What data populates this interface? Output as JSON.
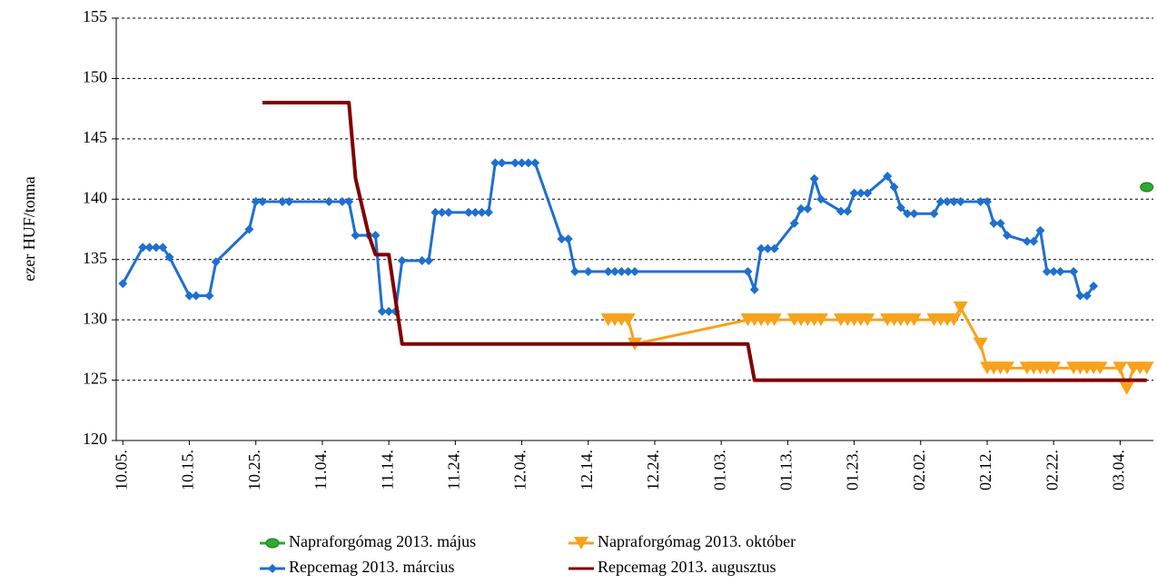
{
  "chart_data": {
    "type": "line",
    "y_label": "ezer HUF/tonna",
    "xlim": [
      -1,
      155
    ],
    "xticks": [
      {
        "value": 0,
        "label": "10.05."
      },
      {
        "value": 10,
        "label": "10.15."
      },
      {
        "value": 20,
        "label": "10.25."
      },
      {
        "value": 30,
        "label": "11.04."
      },
      {
        "value": 40,
        "label": "11.14."
      },
      {
        "value": 50,
        "label": "11.24."
      },
      {
        "value": 60,
        "label": "12.04."
      },
      {
        "value": 70,
        "label": "12.14."
      },
      {
        "value": 80,
        "label": "12.24."
      },
      {
        "value": 90,
        "label": "01.03."
      },
      {
        "value": 100,
        "label": "01.13."
      },
      {
        "value": 110,
        "label": "01.23."
      },
      {
        "value": 120,
        "label": "02.02."
      },
      {
        "value": 130,
        "label": "02.12."
      },
      {
        "value": 140,
        "label": "02.22."
      },
      {
        "value": 150,
        "label": "03.04."
      }
    ],
    "ylim": [
      120,
      155
    ],
    "yticks": [
      120,
      125,
      130,
      135,
      140,
      145,
      150,
      155
    ],
    "grid": true,
    "legend": "bottom",
    "series": [
      {
        "name": "Napraforgómag 2013. május",
        "color": "#2eaa2e",
        "marker": "circle",
        "x": [
          154
        ],
        "values": [
          141
        ]
      },
      {
        "name": "Napraforgómag 2013. október",
        "color": "#f7a21b",
        "marker": "triangle-down",
        "x": [
          73,
          74,
          75,
          76,
          77,
          94,
          95,
          96,
          97,
          98,
          101,
          102,
          103,
          104,
          105,
          108,
          109,
          110,
          111,
          112,
          115,
          116,
          117,
          118,
          119,
          122,
          123,
          124,
          125,
          126,
          129,
          130,
          131,
          132,
          133,
          136,
          137,
          138,
          139,
          140,
          143,
          144,
          145,
          146,
          147,
          150,
          151,
          152,
          153,
          154
        ],
        "values": [
          130,
          130,
          130,
          130,
          128,
          130,
          130,
          130,
          130,
          130,
          130,
          130,
          130,
          130,
          130,
          130,
          130,
          130,
          130,
          130,
          130,
          130,
          130,
          130,
          130,
          130,
          130,
          130,
          130,
          131,
          128,
          126,
          126,
          126,
          126,
          126,
          126,
          126,
          126,
          126,
          126,
          126,
          126,
          126,
          126,
          126,
          124.3,
          126,
          126,
          126
        ]
      },
      {
        "name": "Repcemag 2013. március",
        "color": "#1f6fcf",
        "marker": "diamond",
        "x": [
          0,
          3,
          4,
          5,
          6,
          7,
          10,
          11,
          13,
          14,
          19,
          20,
          21,
          24,
          25,
          31,
          33,
          34,
          35,
          37,
          38,
          39,
          40,
          41,
          42,
          45,
          46,
          47,
          48,
          49,
          52,
          53,
          54,
          55,
          56,
          57,
          59,
          60,
          61,
          62,
          66,
          67,
          68,
          70,
          73,
          74,
          75,
          76,
          77,
          94,
          95,
          96,
          97,
          98,
          101,
          102,
          103,
          104,
          105,
          108,
          109,
          110,
          111,
          112,
          115,
          116,
          117,
          118,
          119,
          122,
          123,
          124,
          125,
          126,
          129,
          130,
          131,
          132,
          133,
          136,
          137,
          138,
          139,
          140,
          141,
          143,
          144,
          145,
          146
        ],
        "values": [
          133,
          136,
          136,
          136,
          136,
          135.2,
          132,
          132,
          132,
          134.8,
          137.5,
          139.8,
          139.8,
          139.8,
          139.8,
          139.8,
          139.8,
          139.8,
          137,
          137,
          137,
          130.7,
          130.7,
          130.7,
          134.9,
          134.9,
          134.9,
          138.9,
          138.9,
          138.9,
          138.9,
          138.9,
          138.9,
          138.9,
          143,
          143,
          143,
          143,
          143,
          143,
          136.7,
          136.7,
          134,
          134,
          134,
          134,
          134,
          134,
          134,
          134,
          132.5,
          135.9,
          135.9,
          135.9,
          138,
          139.2,
          139.2,
          141.7,
          140,
          139,
          139,
          140.5,
          140.5,
          140.5,
          141.9,
          141,
          139.3,
          138.8,
          138.8,
          138.8,
          139.8,
          139.8,
          139.8,
          139.8,
          139.8,
          139.8,
          138,
          138,
          137,
          136.5,
          136.5,
          137.4,
          134,
          134,
          134,
          134,
          132,
          132,
          132.8
        ]
      },
      {
        "name": "Repcemag 2013. augusztus",
        "color": "#800000",
        "marker": "none",
        "x": [
          21,
          34,
          35,
          37,
          38,
          40,
          42,
          94,
          95,
          154
        ],
        "values": [
          148,
          148,
          141.7,
          137,
          135.4,
          135.4,
          128,
          128,
          125,
          125
        ]
      }
    ]
  }
}
